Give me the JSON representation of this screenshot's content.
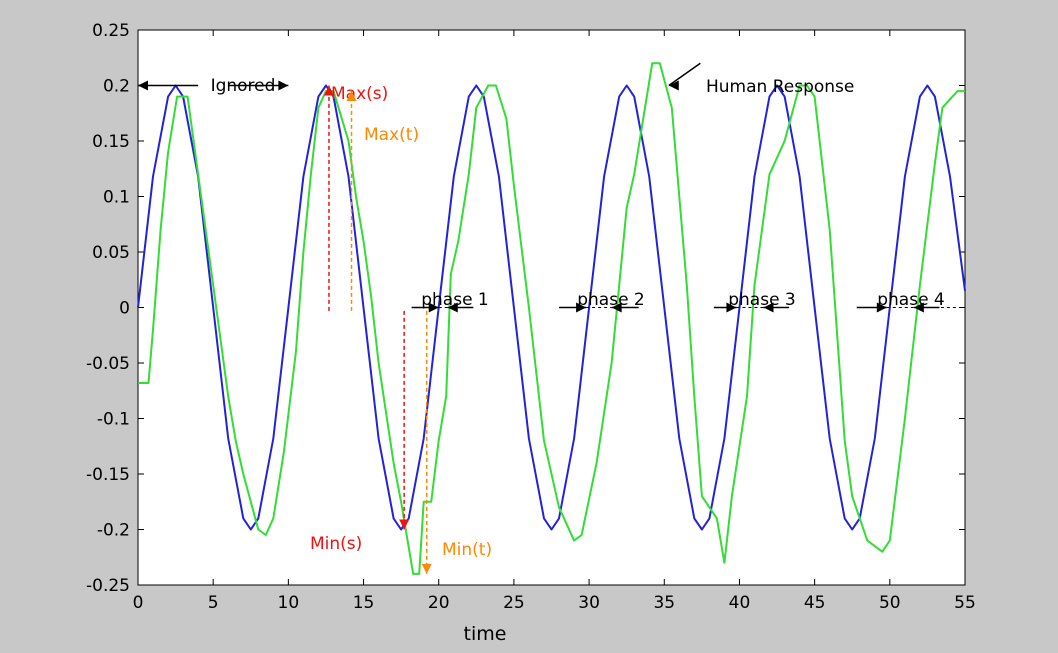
{
  "figure": {
    "background": "#c8c8c8",
    "axes_background": "#ffffff"
  },
  "chart_data": {
    "type": "line",
    "title": "",
    "xlabel": "time",
    "ylabel": "",
    "xlim": [
      0,
      55
    ],
    "ylim": [
      -0.25,
      0.25
    ],
    "grid": false,
    "x_ticks": [
      0,
      5,
      10,
      15,
      20,
      25,
      30,
      35,
      40,
      45,
      50,
      55
    ],
    "y_ticks": [
      -0.25,
      -0.2,
      -0.15,
      -0.1,
      -0.05,
      0,
      0.05,
      0.1,
      0.15,
      0.2,
      0.25
    ],
    "y_tick_labels": [
      "-0.25",
      "-0.2",
      "-0.15",
      "-0.1",
      "-0.05",
      "0",
      "0.05",
      "0.1",
      "0.15",
      "0.2",
      "0.25"
    ],
    "series": [
      {
        "name": "",
        "color": "#2222dd",
        "x": [
          0,
          1,
          2,
          2.5,
          3,
          4,
          5,
          6,
          7,
          7.5,
          8,
          9,
          10,
          11,
          12,
          12.5,
          13,
          14,
          15,
          16,
          17,
          17.5,
          18,
          19,
          20,
          21,
          22,
          22.5,
          23,
          24,
          25,
          26,
          27,
          27.5,
          28,
          29,
          30,
          31,
          32,
          32.5,
          33,
          34,
          35,
          36,
          37,
          37.5,
          38,
          39,
          40,
          41,
          42,
          42.5,
          43,
          44,
          45,
          46,
          47,
          47.5,
          48,
          49,
          50,
          51,
          52,
          52.5,
          53,
          54,
          55
        ],
        "y": [
          0,
          0.118,
          0.19,
          0.2,
          0.19,
          0.118,
          0,
          -0.118,
          -0.19,
          -0.2,
          -0.19,
          -0.118,
          0,
          0.118,
          0.19,
          0.2,
          0.19,
          0.118,
          0,
          -0.118,
          -0.19,
          -0.2,
          -0.19,
          -0.118,
          0,
          0.118,
          0.19,
          0.2,
          0.19,
          0.118,
          0,
          -0.118,
          -0.19,
          -0.2,
          -0.19,
          -0.118,
          0,
          0.118,
          0.19,
          0.2,
          0.19,
          0.118,
          0,
          -0.118,
          -0.19,
          -0.2,
          -0.19,
          -0.118,
          0,
          0.118,
          0.19,
          0.2,
          0.19,
          0.118,
          0,
          -0.118,
          -0.19,
          -0.2,
          -0.19,
          -0.118,
          0,
          0.118,
          0.19,
          0.2,
          0.19,
          0.118,
          0.015
        ]
      },
      {
        "name": "Human Response",
        "color": "#33dd33",
        "x": [
          0,
          0.7,
          1,
          1.5,
          2,
          2.6,
          3.3,
          4,
          5,
          6,
          6.5,
          7,
          8,
          8.5,
          9,
          9.7,
          10.5,
          11,
          11.5,
          12,
          12.5,
          13,
          14,
          14.5,
          15,
          15.5,
          16,
          17,
          17.5,
          18.3,
          18.7,
          19,
          19.5,
          20,
          20.5,
          20.8,
          21.3,
          22,
          22.5,
          23.3,
          23.8,
          24.5,
          25,
          26,
          27,
          28,
          29,
          29.5,
          30.5,
          31.5,
          32,
          32.5,
          33,
          34.2,
          34.7,
          35.5,
          36.5,
          37,
          37.5,
          38.5,
          39,
          39.5,
          40.5,
          41,
          42,
          43,
          44,
          44.5,
          45,
          46,
          47,
          47.5,
          48.5,
          49.5,
          50,
          51,
          52,
          53,
          53.5,
          54.5,
          55
        ],
        "y": [
          -0.068,
          -0.068,
          -0.02,
          0.07,
          0.14,
          0.19,
          0.19,
          0.12,
          0.02,
          -0.08,
          -0.12,
          -0.15,
          -0.2,
          -0.205,
          -0.19,
          -0.13,
          -0.04,
          0.05,
          0.12,
          0.18,
          0.195,
          0.195,
          0.15,
          0.1,
          0.06,
          0.01,
          -0.05,
          -0.14,
          -0.175,
          -0.24,
          -0.24,
          -0.175,
          -0.175,
          -0.12,
          -0.08,
          0.03,
          0.06,
          0.12,
          0.18,
          0.2,
          0.2,
          0.17,
          0.11,
          0,
          -0.12,
          -0.18,
          -0.21,
          -0.205,
          -0.14,
          -0.05,
          0.02,
          0.09,
          0.12,
          0.22,
          0.22,
          0.18,
          0.02,
          -0.08,
          -0.17,
          -0.19,
          -0.23,
          -0.17,
          -0.08,
          0.02,
          0.12,
          0.15,
          0.2,
          0.2,
          0.19,
          0.07,
          -0.12,
          -0.17,
          -0.21,
          -0.22,
          -0.21,
          -0.1,
          0.02,
          0.13,
          0.18,
          0.195,
          0.195
        ]
      }
    ],
    "annotations": {
      "ignored": {
        "text": "Ignored",
        "color": "#000000"
      },
      "human_response": {
        "text": "Human Response",
        "color": "#000000"
      },
      "max_s": {
        "text": "Max(s)",
        "color": "#ee1111"
      },
      "max_t": {
        "text": "Max(t)",
        "color": "#ff8800"
      },
      "min_s": {
        "text": "Min(s)",
        "color": "#ee1111"
      },
      "min_t": {
        "text": "Min(t)",
        "color": "#ff8800"
      },
      "phases": [
        "phase 1",
        "phase 2",
        "phase 3",
        "phase 4"
      ]
    }
  }
}
